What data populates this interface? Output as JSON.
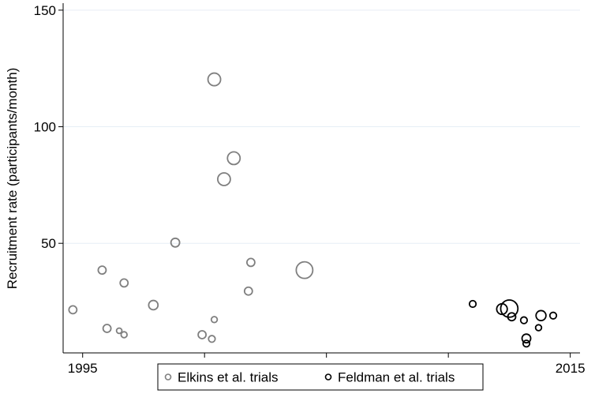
{
  "chart_data": {
    "type": "scatter",
    "title": "",
    "xlabel": "",
    "ylabel": "Recruitment rate (participants/month)",
    "xlim": [
      1994.2,
      2015.4
    ],
    "ylim": [
      3,
      153
    ],
    "xticks": [
      1995,
      2000,
      2005,
      2010,
      2015
    ],
    "yticks": [
      50,
      100,
      150
    ],
    "grid": "horizontal",
    "legend_position": "bottom",
    "marker": "hollow-circle-sized-by-weight",
    "series": [
      {
        "name": "Elkins et al. trials",
        "color": "#7f7f7f",
        "points": [
          {
            "x": 1994.6,
            "y": 21.5,
            "size": 1.2
          },
          {
            "x": 1995.8,
            "y": 38.5,
            "size": 1.2
          },
          {
            "x": 1996.0,
            "y": 13.5,
            "size": 1.2
          },
          {
            "x": 1996.5,
            "y": 12.5,
            "size": 0.8
          },
          {
            "x": 1996.7,
            "y": 33.0,
            "size": 1.2
          },
          {
            "x": 1996.7,
            "y": 10.8,
            "size": 0.9
          },
          {
            "x": 1997.9,
            "y": 23.5,
            "size": 1.4
          },
          {
            "x": 1998.8,
            "y": 50.3,
            "size": 1.3
          },
          {
            "x": 1999.9,
            "y": 10.8,
            "size": 1.2
          },
          {
            "x": 2000.3,
            "y": 9.0,
            "size": 1.0
          },
          {
            "x": 2000.4,
            "y": 17.3,
            "size": 0.9
          },
          {
            "x": 2000.4,
            "y": 120.3,
            "size": 1.9
          },
          {
            "x": 2000.8,
            "y": 77.5,
            "size": 1.9
          },
          {
            "x": 2001.2,
            "y": 86.5,
            "size": 1.9
          },
          {
            "x": 2001.8,
            "y": 29.5,
            "size": 1.2
          },
          {
            "x": 2001.9,
            "y": 41.8,
            "size": 1.2
          },
          {
            "x": 2004.1,
            "y": 38.5,
            "size": 2.5
          }
        ]
      },
      {
        "name": "Feldman et al. trials",
        "color": "#000000",
        "points": [
          {
            "x": 2011.0,
            "y": 24.0,
            "size": 1.0
          },
          {
            "x": 2012.2,
            "y": 21.8,
            "size": 1.6
          },
          {
            "x": 2012.5,
            "y": 22.0,
            "size": 2.6
          },
          {
            "x": 2012.6,
            "y": 18.5,
            "size": 1.2
          },
          {
            "x": 2013.1,
            "y": 17.0,
            "size": 1.0
          },
          {
            "x": 2013.2,
            "y": 9.2,
            "size": 1.3
          },
          {
            "x": 2013.2,
            "y": 7.0,
            "size": 1.0
          },
          {
            "x": 2013.7,
            "y": 13.8,
            "size": 0.9
          },
          {
            "x": 2013.8,
            "y": 19.0,
            "size": 1.5
          },
          {
            "x": 2014.3,
            "y": 19.0,
            "size": 1.0
          }
        ]
      }
    ]
  }
}
